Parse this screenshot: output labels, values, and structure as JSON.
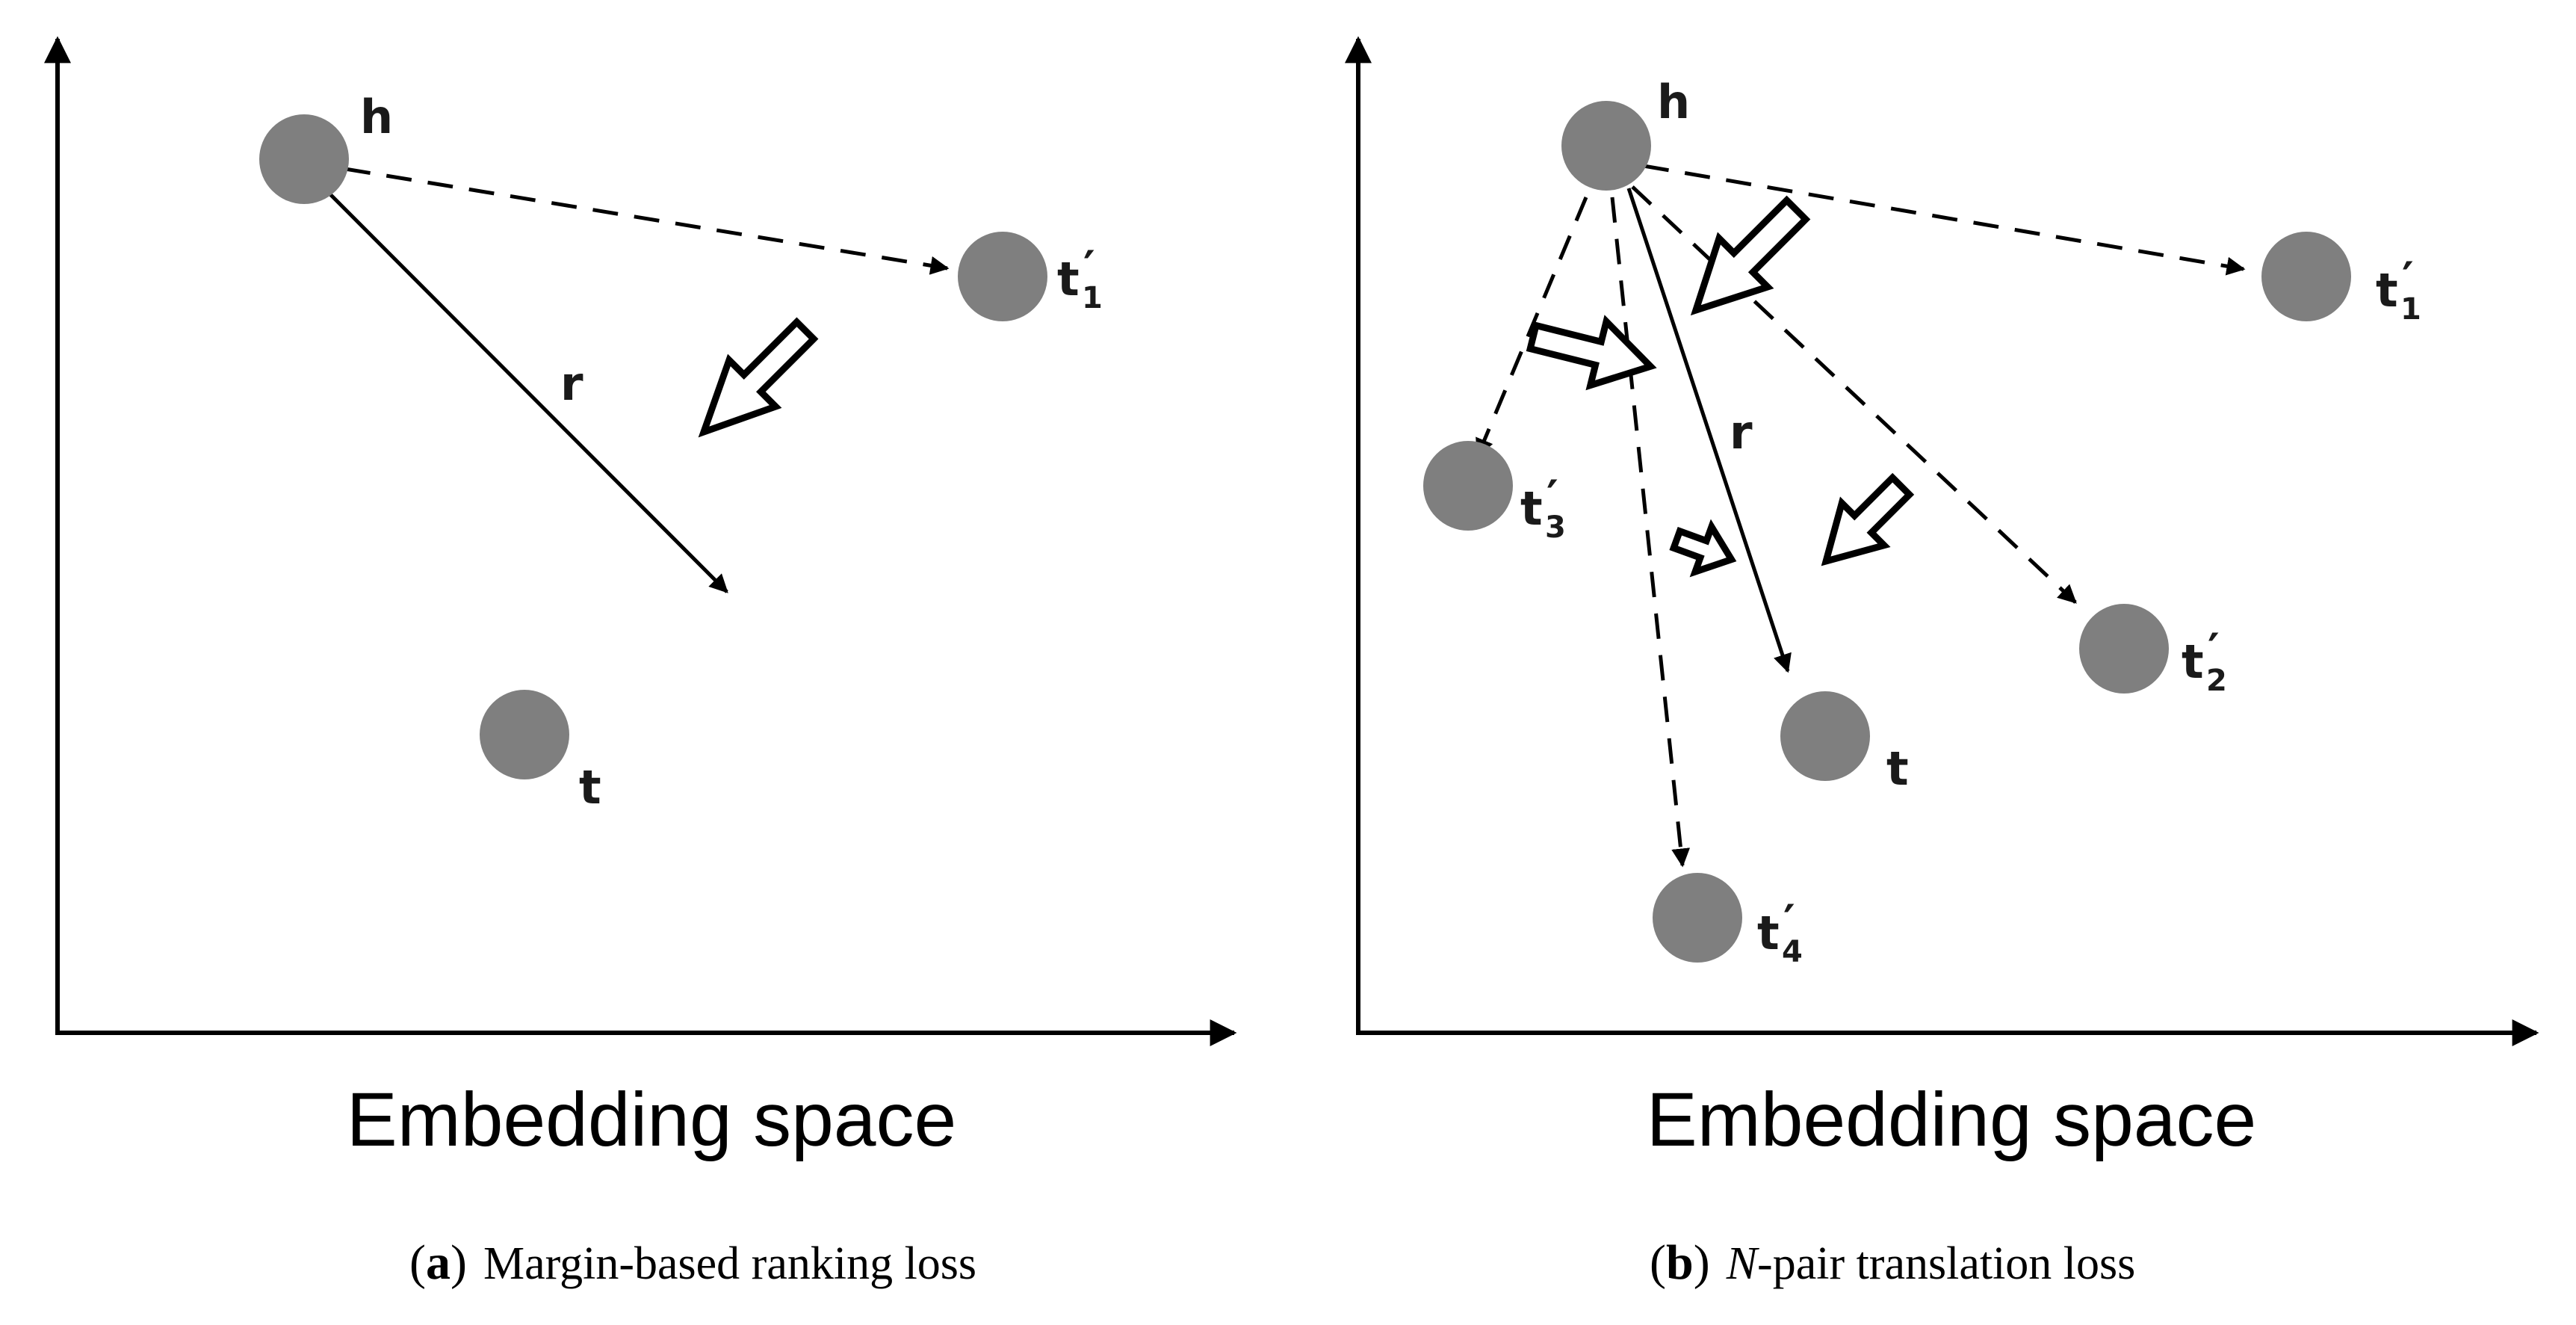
{
  "panel_a": {
    "axis_label": "Embedding space",
    "caption_letter": "a",
    "caption_text": "Margin-based ranking loss",
    "labels": {
      "h": "h",
      "r": "r",
      "t": "t",
      "t1_base": "t",
      "t1_sub": "1",
      "prime": "′"
    }
  },
  "panel_b": {
    "axis_label": "Embedding space",
    "caption_letter": "b",
    "caption_n": "N",
    "caption_text": "-pair translation loss",
    "labels": {
      "h": "h",
      "r": "r",
      "t": "t",
      "t1_base": "t",
      "t1_sub": "1",
      "t2_base": "t",
      "t2_sub": "2",
      "t3_base": "t",
      "t3_sub": "3",
      "t4_base": "t",
      "t4_sub": "4",
      "prime": "′"
    }
  },
  "colors": {
    "node": "#7f7f7f",
    "line": "#000000",
    "background": "#ffffff"
  }
}
